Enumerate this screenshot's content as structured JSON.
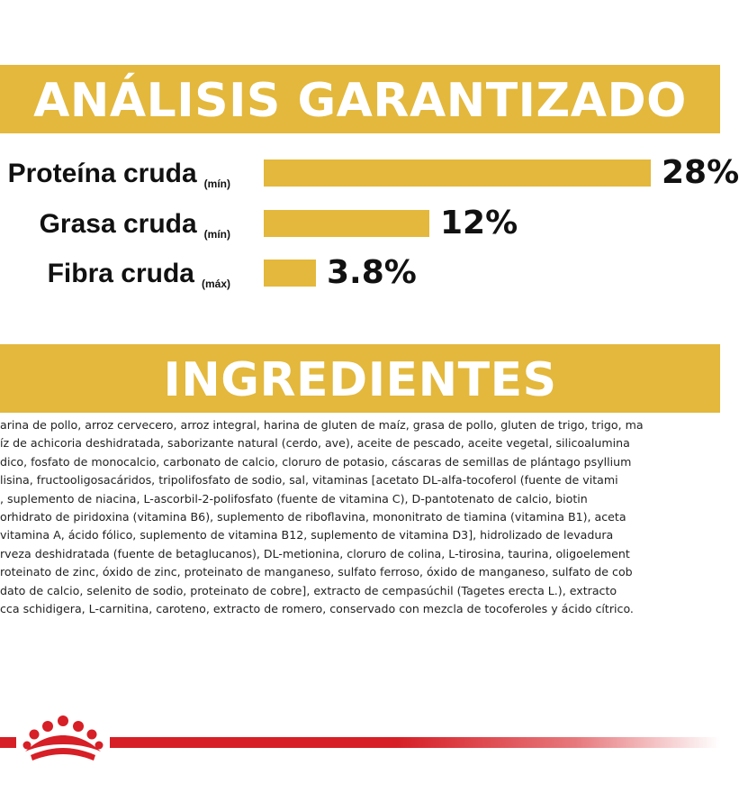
{
  "analysis": {
    "title": "ANÁLISIS GARANTIZADO",
    "items": [
      {
        "label": "Proteína cruda",
        "qualifier": "(mín)",
        "value": "28%",
        "percent": 28
      },
      {
        "label": "Grasa cruda",
        "qualifier": "(mín)",
        "value": "12%",
        "percent": 12
      },
      {
        "label": "Fibra cruda",
        "qualifier": "(máx)",
        "value": "3.8%",
        "percent": 3.8
      }
    ]
  },
  "ingredients": {
    "title": "INGREDIENTES",
    "lines": [
      "arina de pollo, arroz cervecero, arroz integral, harina de gluten de maíz, grasa de pollo, gluten de trigo, trigo, ma",
      "íz de achicoria deshidratada, saborizante natural (cerdo, ave), aceite de pescado, aceite vegetal, silicoalumina",
      "dico, fosfato de monocalcio, carbonato de calcio, cloruro de potasio, cáscaras de semillas de plántago psyllium",
      "lisina, fructooligosacáridos, tripolifosfato de sodio, sal, vitaminas [acetato DL-alfa-tocoferol (fuente de vitami",
      ", suplemento de niacina, L-ascorbil-2-polifosfato (fuente de vitamina C), D-pantotenato de calcio, biotin",
      "orhidrato de piridoxina (vitamina B6), suplemento de riboflavina, mononitrato de tiamina (vitamina B1), aceta",
      "vitamina A, ácido fólico, suplemento de vitamina B12, suplemento de vitamina D3], hidrolizado de levadura",
      "rveza deshidratada (fuente de betaglucanos), DL-metionina, cloruro de colina, L-tirosina, taurina, oligoelement",
      "roteinato de zinc, óxido de zinc, proteinato de manganeso, sulfato ferroso, óxido de manganeso, sulfato de cob",
      "dato de calcio, selenito de sodio, proteinato de cobre], extracto de cempasúchil (Tagetes erecta L.), extracto",
      "cca schidigera, L-carnitina, caroteno, extracto de romero, conservado con mezcla de tocoferoles y ácido cítrico."
    ]
  },
  "colors": {
    "accent": "#e3b83c",
    "brand_red": "#d61f26",
    "text": "#111111"
  },
  "icons": {
    "logo": "crown-icon"
  }
}
